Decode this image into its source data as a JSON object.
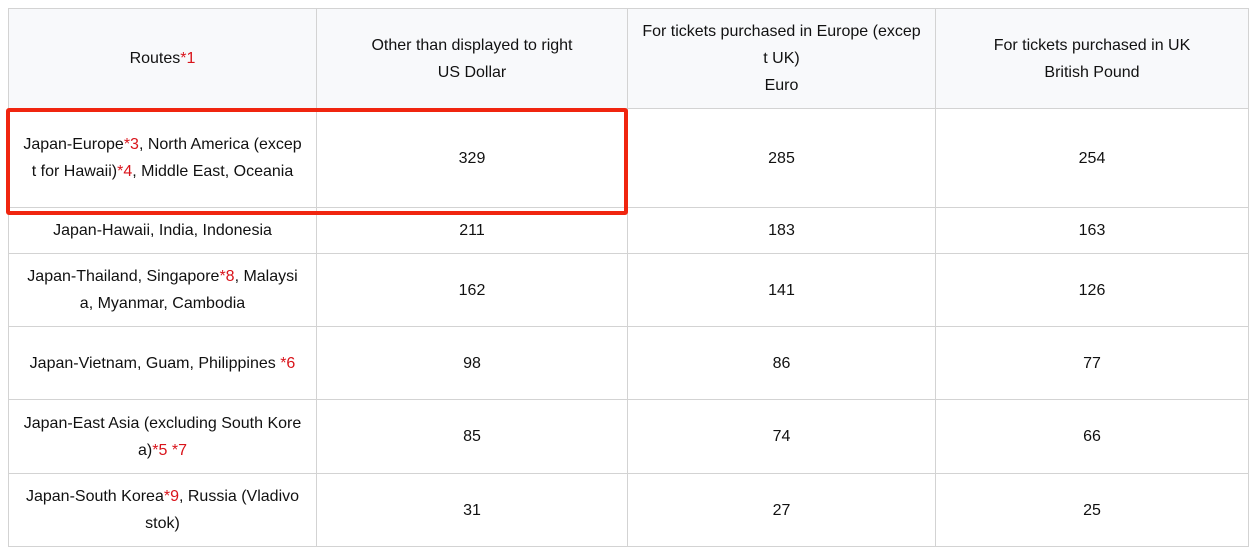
{
  "header": {
    "routes": "Routes",
    "routes_note": "*1",
    "col2_line1": "Other than displayed to right",
    "col2_line2": "US Dollar",
    "col3_line1": "For tickets purchased in Europe (except UK)",
    "col3_line2": "Euro",
    "col4_line1": "For tickets purchased in UK",
    "col4_line2": "British Pound"
  },
  "rows": [
    {
      "route": [
        {
          "t": "Japan-Europe"
        },
        {
          "t": "*3",
          "fn": true
        },
        {
          "t": ", North America (except for Hawaii)"
        },
        {
          "t": "*4",
          "fn": true
        },
        {
          "t": ", Middle East, Oceania"
        }
      ],
      "usd": "329",
      "eur": "285",
      "gbp": "254",
      "highlighted": true
    },
    {
      "route": [
        {
          "t": "Japan-Hawaii, India, Indonesia"
        }
      ],
      "usd": "211",
      "eur": "183",
      "gbp": "163"
    },
    {
      "route": [
        {
          "t": "Japan-Thailand, Singapore"
        },
        {
          "t": "*8",
          "fn": true
        },
        {
          "t": ", Malaysia, Myanmar, Cambodia"
        }
      ],
      "usd": "162",
      "eur": "141",
      "gbp": "126"
    },
    {
      "route": [
        {
          "t": "Japan-Vietnam, Guam, Philippines "
        },
        {
          "t": "*6",
          "fn": true
        }
      ],
      "usd": "98",
      "eur": "86",
      "gbp": "77"
    },
    {
      "route": [
        {
          "t": "Japan-East Asia (excluding South Korea)"
        },
        {
          "t": "*5 *7",
          "fn": true
        }
      ],
      "usd": "85",
      "eur": "74",
      "gbp": "66"
    },
    {
      "route": [
        {
          "t": "Japan-South Korea"
        },
        {
          "t": "*9",
          "fn": true
        },
        {
          "t": ", Russia (Vladivostok)"
        }
      ],
      "usd": "31",
      "eur": "27",
      "gbp": "25"
    }
  ],
  "colors": {
    "highlight": "#f0250f",
    "footnote": "#d9141b",
    "header_bg": "#f8f9fb"
  }
}
